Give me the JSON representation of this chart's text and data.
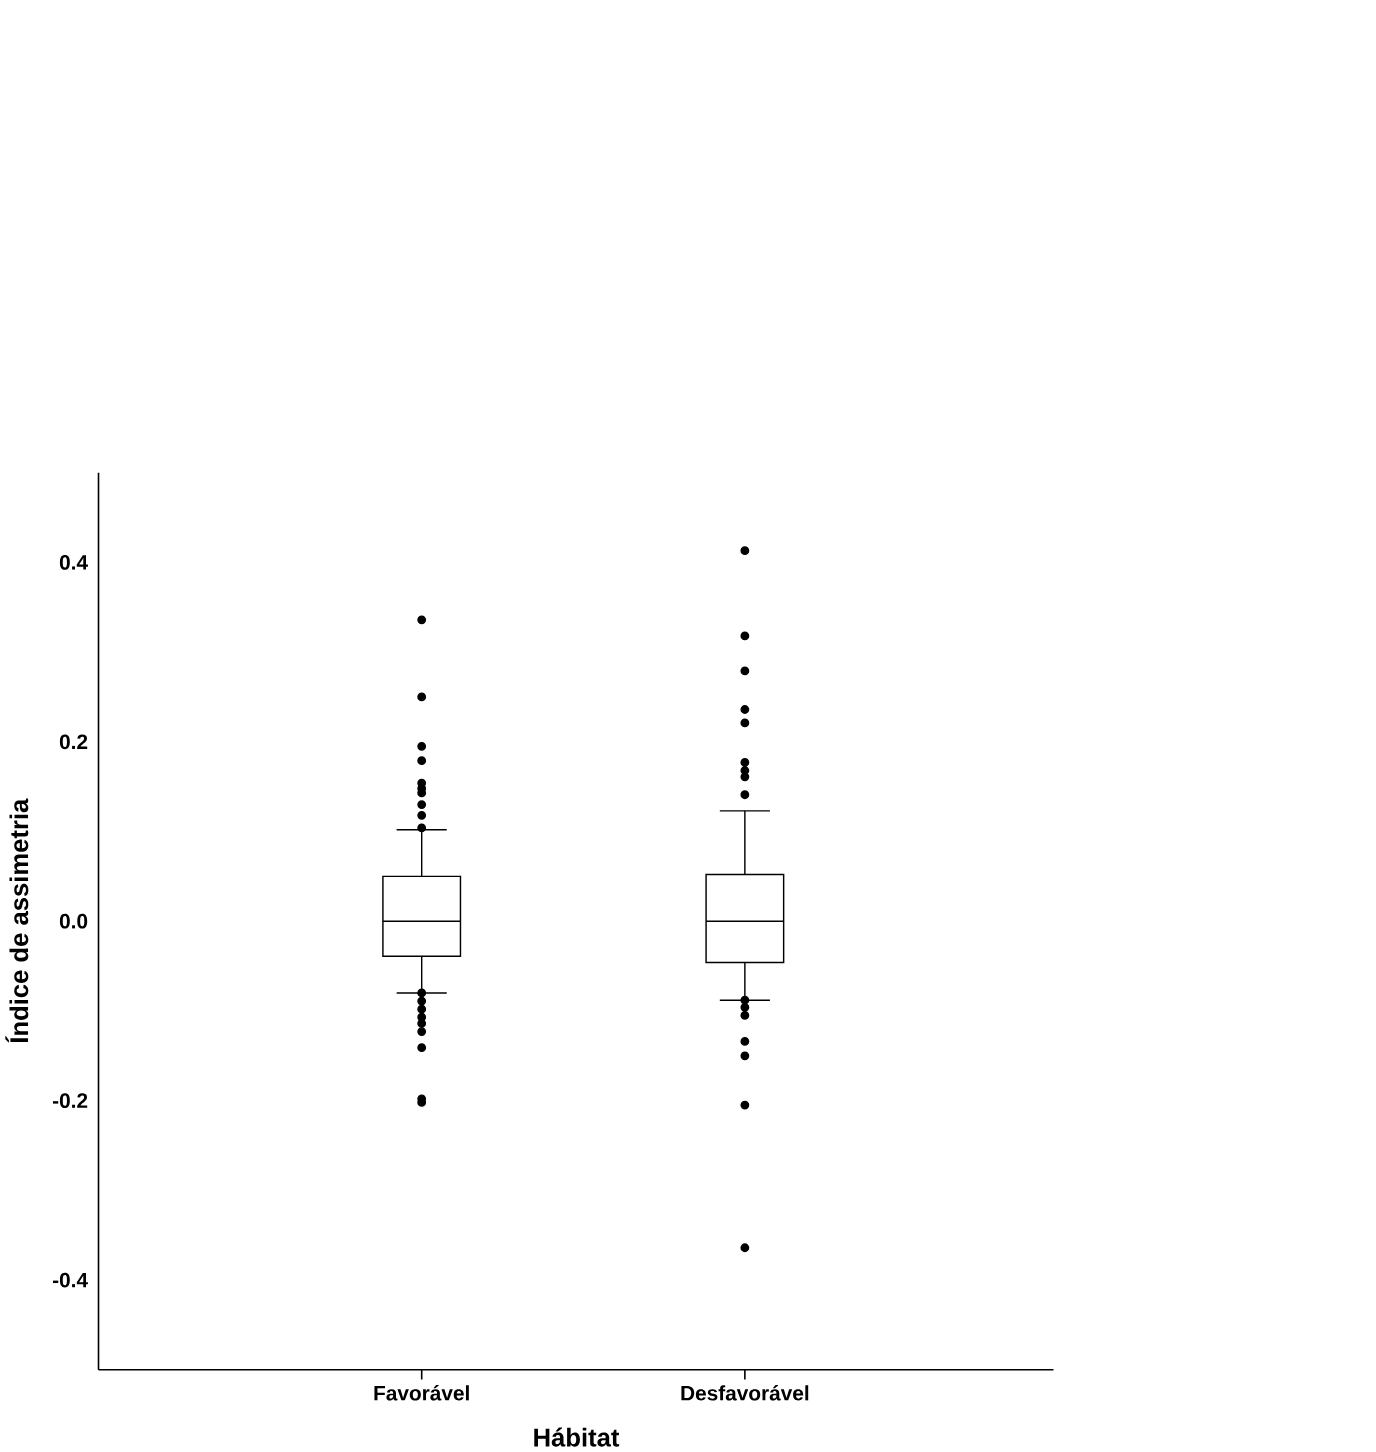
{
  "chart_data": {
    "type": "box",
    "xlabel": "Hábitat",
    "ylabel": "Índice de assimetria",
    "categories": [
      "Favorável",
      "Desfavorável"
    ],
    "boxes": [
      {
        "low": -0.08,
        "q1": -0.039,
        "median": 0.0,
        "q3": 0.05,
        "high": 0.102,
        "outliers": [
          0.336,
          0.25,
          0.195,
          0.179,
          0.154,
          0.148,
          0.143,
          0.13,
          0.118,
          0.104,
          -0.08,
          -0.089,
          -0.098,
          -0.107,
          -0.114,
          -0.123,
          -0.141,
          -0.198,
          -0.202
        ]
      },
      {
        "low": -0.088,
        "q1": -0.046,
        "median": 0.0,
        "q3": 0.052,
        "high": 0.123,
        "outliers": [
          0.413,
          0.318,
          0.279,
          0.236,
          0.221,
          0.177,
          0.168,
          0.161,
          0.141,
          -0.088,
          -0.096,
          -0.105,
          -0.134,
          -0.15,
          -0.205,
          -0.364
        ]
      }
    ],
    "ylim": [
      -0.5,
      0.5
    ],
    "yticks": [
      -0.4,
      -0.2,
      {
        "value": 0,
        "label": "0.0"
      },
      0.2,
      0.4
    ],
    "grid": false
  }
}
